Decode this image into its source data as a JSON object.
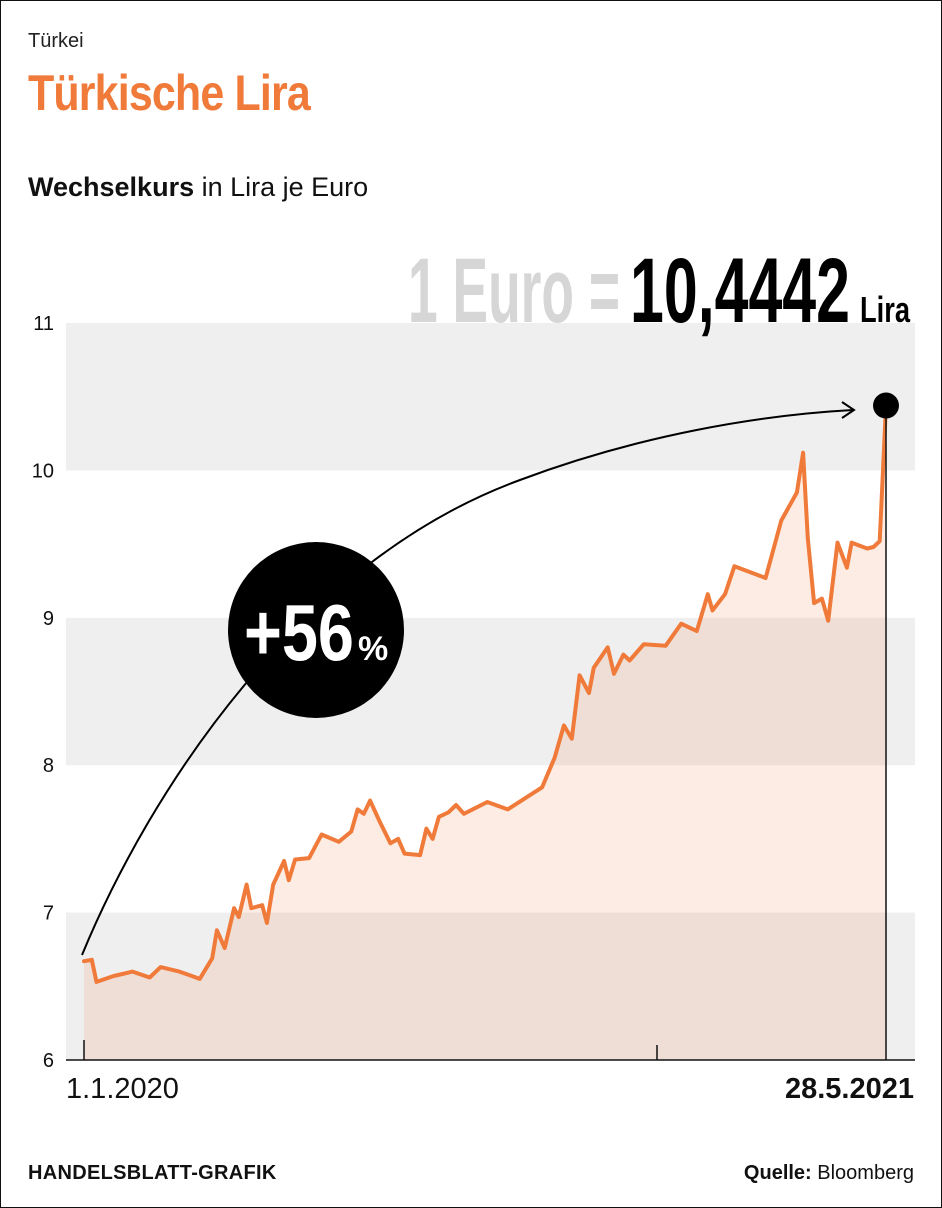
{
  "header": {
    "kicker": "Türkei",
    "title": "Türkische Lira",
    "subtitle_bold": "Wechselkurs",
    "subtitle_rest": " in Lira je Euro"
  },
  "callout": {
    "prefix": "1 Euro =",
    "value": "10,4442",
    "unit": "Lira",
    "change_value": "+56",
    "change_unit": "%"
  },
  "footer": {
    "credit": "HANDELSBLATT-GRAFIK",
    "source_label": "Quelle:",
    "source_name": " Bloomberg"
  },
  "colors": {
    "line": "#f07a3a",
    "fill": "#fdeee6",
    "band": "#efefef",
    "accent": "#f07a3a",
    "dark": "#000000",
    "muted": "#d6d6d6"
  },
  "chart_data": {
    "type": "line",
    "ylim": [
      6,
      11
    ],
    "yticks": [
      "6",
      "7",
      "8",
      "9",
      "10",
      "11"
    ],
    "x_start_label": "1.1.2020",
    "x_end_label": "28.5.2021",
    "series": [
      {
        "values": [
          [
            "2020-01-01",
            6.67
          ],
          [
            "2020-01-06",
            6.68
          ],
          [
            "2020-01-09",
            6.53
          ],
          [
            "2020-01-20",
            6.57
          ],
          [
            "2020-02-01",
            6.6
          ],
          [
            "2020-02-12",
            6.56
          ],
          [
            "2020-02-19",
            6.63
          ],
          [
            "2020-03-02",
            6.6
          ],
          [
            "2020-03-10",
            6.57
          ],
          [
            "2020-03-15",
            6.55
          ],
          [
            "2020-03-23",
            6.69
          ],
          [
            "2020-03-26",
            6.88
          ],
          [
            "2020-03-31",
            6.76
          ],
          [
            "2020-04-06",
            7.03
          ],
          [
            "2020-04-09",
            6.97
          ],
          [
            "2020-04-14",
            7.19
          ],
          [
            "2020-04-17",
            7.03
          ],
          [
            "2020-04-24",
            7.05
          ],
          [
            "2020-04-27",
            6.93
          ],
          [
            "2020-05-01",
            7.19
          ],
          [
            "2020-05-08",
            7.35
          ],
          [
            "2020-05-11",
            7.22
          ],
          [
            "2020-05-15",
            7.36
          ],
          [
            "2020-05-24",
            7.37
          ],
          [
            "2020-06-01",
            7.53
          ],
          [
            "2020-06-12",
            7.48
          ],
          [
            "2020-06-20",
            7.55
          ],
          [
            "2020-06-24",
            7.7
          ],
          [
            "2020-06-28",
            7.67
          ],
          [
            "2020-07-02",
            7.76
          ],
          [
            "2020-07-08",
            7.62
          ],
          [
            "2020-07-15",
            7.47
          ],
          [
            "2020-07-20",
            7.5
          ],
          [
            "2020-07-24",
            7.4
          ],
          [
            "2020-08-03",
            7.39
          ],
          [
            "2020-08-07",
            7.57
          ],
          [
            "2020-08-11",
            7.5
          ],
          [
            "2020-08-15",
            7.65
          ],
          [
            "2020-08-21",
            7.68
          ],
          [
            "2020-08-26",
            7.73
          ],
          [
            "2020-08-31",
            7.67
          ],
          [
            "2020-09-15",
            7.75
          ],
          [
            "2020-09-28",
            7.7
          ],
          [
            "2020-10-20",
            7.85
          ],
          [
            "2020-10-28",
            8.05
          ],
          [
            "2020-11-03",
            8.27
          ],
          [
            "2020-11-08",
            8.18
          ],
          [
            "2020-11-13",
            8.61
          ],
          [
            "2020-11-19",
            8.49
          ],
          [
            "2020-11-22",
            8.66
          ],
          [
            "2020-12-01",
            8.8
          ],
          [
            "2020-12-05",
            8.62
          ],
          [
            "2020-12-11",
            8.75
          ],
          [
            "2020-12-15",
            8.71
          ],
          [
            "2020-12-24",
            8.82
          ],
          [
            "2021-01-07",
            8.81
          ],
          [
            "2021-01-17",
            8.96
          ],
          [
            "2021-01-27",
            8.91
          ],
          [
            "2021-02-03",
            9.16
          ],
          [
            "2021-02-06",
            9.05
          ],
          [
            "2021-02-14",
            9.16
          ],
          [
            "2021-02-20",
            9.35
          ],
          [
            "2021-03-12",
            9.27
          ],
          [
            "2021-03-22",
            9.66
          ],
          [
            "2021-04-01",
            9.85
          ],
          [
            "2021-04-05",
            10.12
          ],
          [
            "2021-04-08",
            9.54
          ],
          [
            "2021-04-12",
            9.1
          ],
          [
            "2021-04-17",
            9.13
          ],
          [
            "2021-04-21",
            8.98
          ],
          [
            "2021-04-27",
            9.51
          ],
          [
            "2021-05-03",
            9.34
          ],
          [
            "2021-05-06",
            9.51
          ],
          [
            "2021-05-11",
            9.49
          ],
          [
            "2021-05-16",
            9.47
          ],
          [
            "2021-05-20",
            9.48
          ],
          [
            "2021-05-24",
            9.52
          ],
          [
            "2021-05-28",
            10.44
          ]
        ]
      }
    ]
  }
}
